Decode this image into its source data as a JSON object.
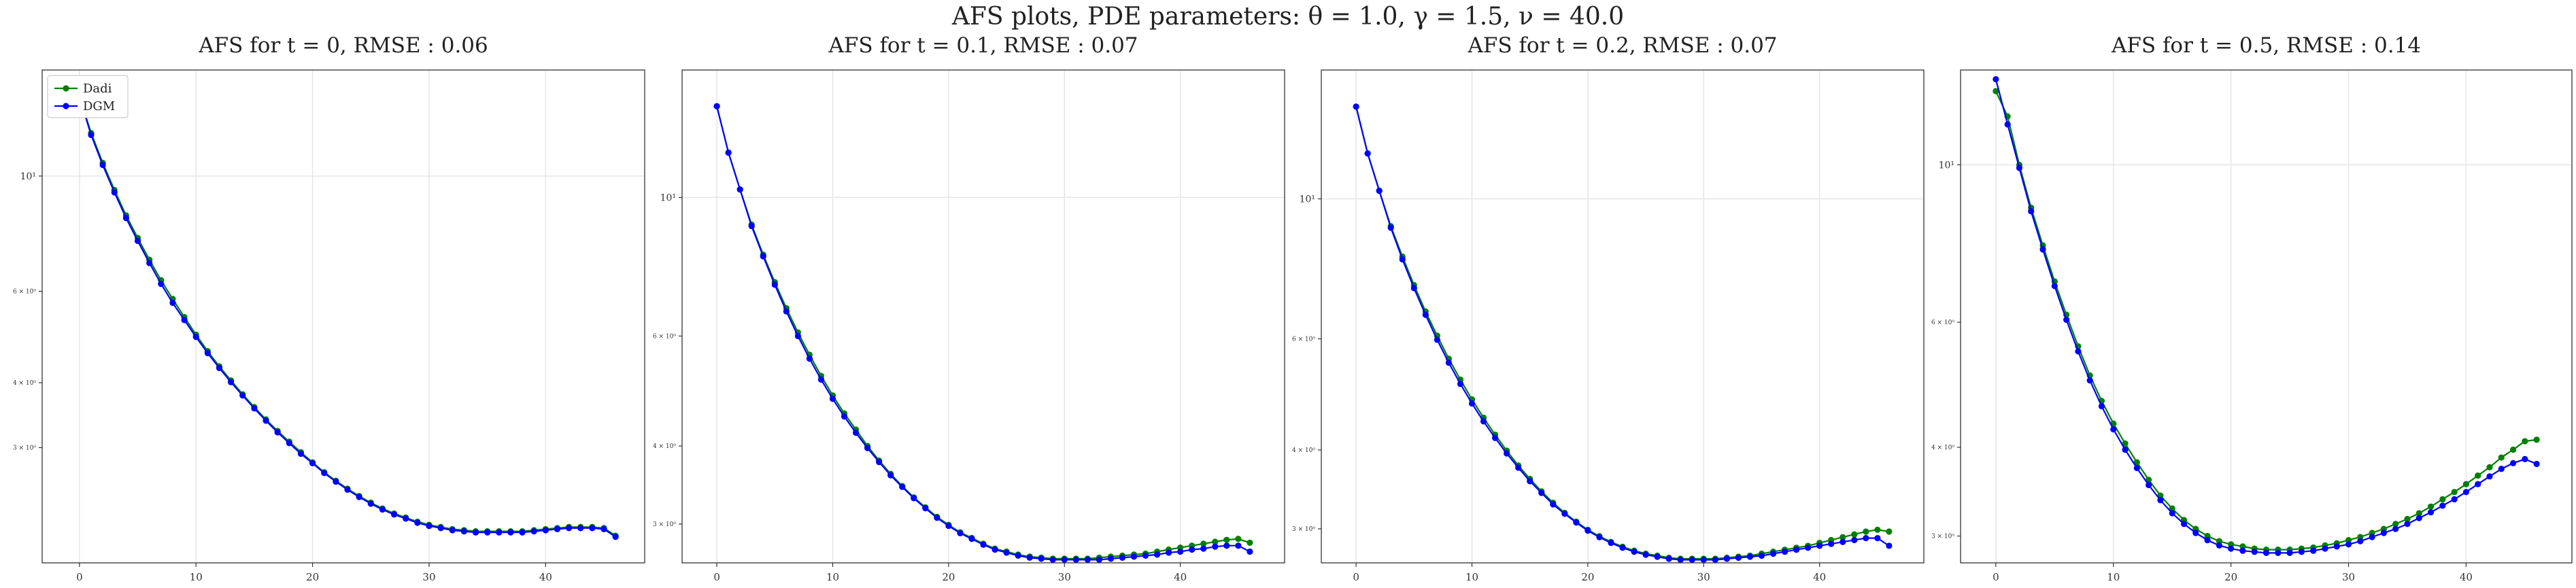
{
  "figure": {
    "suptitle": "AFS plots, PDE parameters: θ = 1.0, γ = 1.5, ν = 40.0"
  },
  "chart_data": [
    {
      "type": "line",
      "title": "AFS for t = 0, RMSE : 0.06",
      "xlabel": "",
      "ylabel": "",
      "yscale": "log",
      "xlim": [
        -3.2,
        48.5
      ],
      "ylim": [
        1.8,
        16.0
      ],
      "xticks": [
        0,
        10,
        20,
        30,
        40
      ],
      "yticks": [
        {
          "value": 3,
          "label": "3 × 10⁰"
        },
        {
          "value": 4,
          "label": "4 × 10⁰"
        },
        {
          "value": 6,
          "label": "6 × 10⁰"
        },
        {
          "value": 10,
          "label": "10¹"
        }
      ],
      "grid": true,
      "legend": {
        "position": "top-left",
        "entries": [
          "Dadi",
          "DGM"
        ]
      },
      "series": [
        {
          "name": "Dadi",
          "color": "#008000",
          "x": [
            0,
            1,
            2,
            3,
            4,
            5,
            6,
            7,
            8,
            9,
            10,
            11,
            12,
            13,
            14,
            15,
            16,
            17,
            18,
            19,
            20,
            21,
            22,
            23,
            24,
            25,
            26,
            27,
            28,
            29,
            30,
            31,
            32,
            33,
            34,
            35,
            36,
            37,
            38,
            39,
            40,
            41,
            42,
            43,
            44,
            45,
            46
          ],
          "values": [
            14.2,
            12.1,
            10.6,
            9.4,
            8.4,
            7.6,
            6.9,
            6.3,
            5.8,
            5.35,
            4.95,
            4.6,
            4.3,
            4.04,
            3.8,
            3.59,
            3.4,
            3.23,
            3.08,
            2.94,
            2.81,
            2.69,
            2.59,
            2.5,
            2.42,
            2.35,
            2.29,
            2.24,
            2.2,
            2.16,
            2.13,
            2.11,
            2.09,
            2.08,
            2.07,
            2.07,
            2.07,
            2.07,
            2.07,
            2.08,
            2.09,
            2.1,
            2.11,
            2.11,
            2.11,
            2.1,
            2.03
          ]
        },
        {
          "name": "DGM",
          "color": "#0000ff",
          "x": [
            0,
            1,
            2,
            3,
            4,
            5,
            6,
            7,
            8,
            9,
            10,
            11,
            12,
            13,
            14,
            15,
            16,
            17,
            18,
            19,
            20,
            21,
            22,
            23,
            24,
            25,
            26,
            27,
            28,
            29,
            30,
            31,
            32,
            33,
            34,
            35,
            36,
            37,
            38,
            39,
            40,
            41,
            42,
            43,
            44,
            45,
            46
          ],
          "values": [
            14.2,
            12.0,
            10.5,
            9.3,
            8.3,
            7.5,
            6.8,
            6.2,
            5.7,
            5.28,
            4.9,
            4.56,
            4.27,
            4.01,
            3.78,
            3.57,
            3.38,
            3.21,
            3.06,
            2.92,
            2.8,
            2.68,
            2.58,
            2.49,
            2.41,
            2.34,
            2.28,
            2.23,
            2.19,
            2.15,
            2.12,
            2.1,
            2.08,
            2.07,
            2.06,
            2.06,
            2.06,
            2.06,
            2.06,
            2.07,
            2.08,
            2.09,
            2.1,
            2.1,
            2.1,
            2.09,
            2.02
          ]
        }
      ]
    },
    {
      "type": "line",
      "title": "AFS for t = 0.1, RMSE : 0.07",
      "xlabel": "",
      "ylabel": "",
      "yscale": "log",
      "xlim": [
        -3.0,
        49.0
      ],
      "ylim": [
        2.6,
        16.0
      ],
      "xticks": [
        0,
        10,
        20,
        30,
        40
      ],
      "yticks": [
        {
          "value": 3,
          "label": "3 × 10⁰"
        },
        {
          "value": 4,
          "label": "4 × 10⁰"
        },
        {
          "value": 6,
          "label": "6 × 10⁰"
        },
        {
          "value": 10,
          "label": "10¹"
        }
      ],
      "grid": true,
      "legend": null,
      "series": [
        {
          "name": "Dadi",
          "color": "#008000",
          "x": [
            0,
            1,
            2,
            3,
            4,
            5,
            6,
            7,
            8,
            9,
            10,
            11,
            12,
            13,
            14,
            15,
            16,
            17,
            18,
            19,
            20,
            21,
            22,
            23,
            24,
            25,
            26,
            27,
            28,
            29,
            30,
            31,
            32,
            33,
            34,
            35,
            36,
            37,
            38,
            39,
            40,
            41,
            42,
            43,
            44,
            45,
            46
          ],
          "values": [
            14.0,
            11.8,
            10.3,
            9.05,
            8.1,
            7.32,
            6.65,
            6.08,
            5.6,
            5.18,
            4.82,
            4.51,
            4.25,
            4.0,
            3.79,
            3.61,
            3.45,
            3.31,
            3.19,
            3.08,
            2.99,
            2.91,
            2.85,
            2.79,
            2.74,
            2.71,
            2.68,
            2.66,
            2.65,
            2.64,
            2.64,
            2.64,
            2.64,
            2.65,
            2.66,
            2.67,
            2.68,
            2.69,
            2.71,
            2.73,
            2.75,
            2.77,
            2.79,
            2.81,
            2.83,
            2.84,
            2.8
          ]
        },
        {
          "name": "DGM",
          "color": "#0000ff",
          "x": [
            0,
            1,
            2,
            3,
            4,
            5,
            6,
            7,
            8,
            9,
            10,
            11,
            12,
            13,
            14,
            15,
            16,
            17,
            18,
            19,
            20,
            21,
            22,
            23,
            24,
            25,
            26,
            27,
            28,
            29,
            30,
            31,
            32,
            33,
            34,
            35,
            36,
            37,
            38,
            39,
            40,
            41,
            42,
            43,
            44,
            45,
            46
          ],
          "values": [
            14.0,
            11.8,
            10.3,
            9.0,
            8.05,
            7.25,
            6.57,
            6.0,
            5.52,
            5.11,
            4.76,
            4.46,
            4.2,
            3.97,
            3.77,
            3.59,
            3.44,
            3.3,
            3.18,
            3.07,
            2.98,
            2.9,
            2.84,
            2.78,
            2.73,
            2.7,
            2.67,
            2.65,
            2.64,
            2.63,
            2.63,
            2.63,
            2.63,
            2.63,
            2.64,
            2.65,
            2.66,
            2.67,
            2.68,
            2.7,
            2.71,
            2.73,
            2.74,
            2.76,
            2.77,
            2.77,
            2.71
          ]
        }
      ]
    },
    {
      "type": "line",
      "title": "AFS for t = 0.2, RMSE : 0.07",
      "xlabel": "",
      "ylabel": "",
      "yscale": "log",
      "xlim": [
        -3.0,
        49.0
      ],
      "ylim": [
        2.65,
        16.0
      ],
      "xticks": [
        0,
        10,
        20,
        30,
        40
      ],
      "yticks": [
        {
          "value": 3,
          "label": "3 × 10⁰"
        },
        {
          "value": 4,
          "label": "4 × 10⁰"
        },
        {
          "value": 6,
          "label": "6 × 10⁰"
        },
        {
          "value": 10,
          "label": "10¹"
        }
      ],
      "grid": true,
      "legend": null,
      "series": [
        {
          "name": "Dadi",
          "color": "#008000",
          "x": [
            0,
            1,
            2,
            3,
            4,
            5,
            6,
            7,
            8,
            9,
            10,
            11,
            12,
            13,
            14,
            15,
            16,
            17,
            18,
            19,
            20,
            21,
            22,
            23,
            24,
            25,
            26,
            27,
            28,
            29,
            30,
            31,
            32,
            33,
            34,
            35,
            36,
            37,
            38,
            39,
            40,
            41,
            42,
            43,
            44,
            45,
            46
          ],
          "values": [
            14.0,
            11.8,
            10.3,
            9.05,
            8.1,
            7.3,
            6.63,
            6.07,
            5.58,
            5.17,
            4.81,
            4.5,
            4.23,
            3.99,
            3.78,
            3.6,
            3.44,
            3.3,
            3.18,
            3.08,
            2.99,
            2.92,
            2.86,
            2.81,
            2.77,
            2.74,
            2.72,
            2.7,
            2.69,
            2.69,
            2.69,
            2.69,
            2.7,
            2.71,
            2.72,
            2.74,
            2.76,
            2.78,
            2.8,
            2.82,
            2.85,
            2.88,
            2.91,
            2.94,
            2.97,
            2.99,
            2.97
          ]
        },
        {
          "name": "DGM",
          "color": "#0000ff",
          "x": [
            0,
            1,
            2,
            3,
            4,
            5,
            6,
            7,
            8,
            9,
            10,
            11,
            12,
            13,
            14,
            15,
            16,
            17,
            18,
            19,
            20,
            21,
            22,
            23,
            24,
            25,
            26,
            27,
            28,
            29,
            30,
            31,
            32,
            33,
            34,
            35,
            36,
            37,
            38,
            39,
            40,
            41,
            42,
            43,
            44,
            45,
            46
          ],
          "values": [
            14.0,
            11.8,
            10.3,
            9.0,
            8.02,
            7.22,
            6.55,
            5.98,
            5.5,
            5.09,
            4.74,
            4.44,
            4.18,
            3.95,
            3.75,
            3.57,
            3.42,
            3.28,
            3.17,
            3.07,
            2.98,
            2.91,
            2.85,
            2.8,
            2.76,
            2.73,
            2.71,
            2.69,
            2.68,
            2.68,
            2.68,
            2.68,
            2.69,
            2.7,
            2.71,
            2.72,
            2.74,
            2.76,
            2.78,
            2.8,
            2.82,
            2.84,
            2.86,
            2.88,
            2.9,
            2.9,
            2.82
          ]
        }
      ]
    },
    {
      "type": "line",
      "title": "AFS for t = 0.5, RMSE : 0.14",
      "xlabel": "",
      "ylabel": "",
      "yscale": "log",
      "xlim": [
        -3.0,
        49.0
      ],
      "ylim": [
        2.75,
        13.6
      ],
      "xticks": [
        0,
        10,
        20,
        30,
        40
      ],
      "yticks": [
        {
          "value": 3,
          "label": "3 × 10⁰"
        },
        {
          "value": 4,
          "label": "4 × 10⁰"
        },
        {
          "value": 6,
          "label": "6 × 10⁰"
        },
        {
          "value": 10,
          "label": "10¹"
        }
      ],
      "grid": true,
      "legend": null,
      "series": [
        {
          "name": "Dadi",
          "color": "#008000",
          "x": [
            0,
            1,
            2,
            3,
            4,
            5,
            6,
            7,
            8,
            9,
            10,
            11,
            12,
            13,
            14,
            15,
            16,
            17,
            18,
            19,
            20,
            21,
            22,
            23,
            24,
            25,
            26,
            27,
            28,
            29,
            30,
            31,
            32,
            33,
            34,
            35,
            36,
            37,
            38,
            39,
            40,
            41,
            42,
            43,
            44,
            45,
            46
          ],
          "values": [
            12.7,
            11.7,
            10.0,
            8.7,
            7.7,
            6.85,
            6.15,
            5.55,
            5.05,
            4.65,
            4.32,
            4.05,
            3.81,
            3.6,
            3.42,
            3.28,
            3.16,
            3.07,
            3.0,
            2.95,
            2.92,
            2.9,
            2.88,
            2.87,
            2.87,
            2.87,
            2.88,
            2.89,
            2.91,
            2.93,
            2.96,
            2.99,
            3.03,
            3.07,
            3.12,
            3.17,
            3.23,
            3.3,
            3.38,
            3.46,
            3.55,
            3.65,
            3.75,
            3.87,
            3.97,
            4.08,
            4.1
          ]
        },
        {
          "name": "DGM",
          "color": "#0000ff",
          "x": [
            0,
            1,
            2,
            3,
            4,
            5,
            6,
            7,
            8,
            9,
            10,
            11,
            12,
            13,
            14,
            15,
            16,
            17,
            18,
            19,
            20,
            21,
            22,
            23,
            24,
            25,
            26,
            27,
            28,
            29,
            30,
            31,
            32,
            33,
            34,
            35,
            36,
            37,
            38,
            39,
            40,
            41,
            42,
            43,
            44,
            45,
            46
          ],
          "values": [
            13.2,
            11.4,
            9.9,
            8.6,
            7.6,
            6.75,
            6.05,
            5.46,
            4.97,
            4.57,
            4.24,
            3.97,
            3.74,
            3.54,
            3.37,
            3.23,
            3.12,
            3.03,
            2.96,
            2.91,
            2.88,
            2.86,
            2.85,
            2.84,
            2.84,
            2.84,
            2.85,
            2.86,
            2.88,
            2.9,
            2.92,
            2.95,
            2.99,
            3.03,
            3.07,
            3.12,
            3.18,
            3.24,
            3.31,
            3.38,
            3.46,
            3.55,
            3.64,
            3.73,
            3.8,
            3.85,
            3.79
          ]
        }
      ]
    }
  ]
}
